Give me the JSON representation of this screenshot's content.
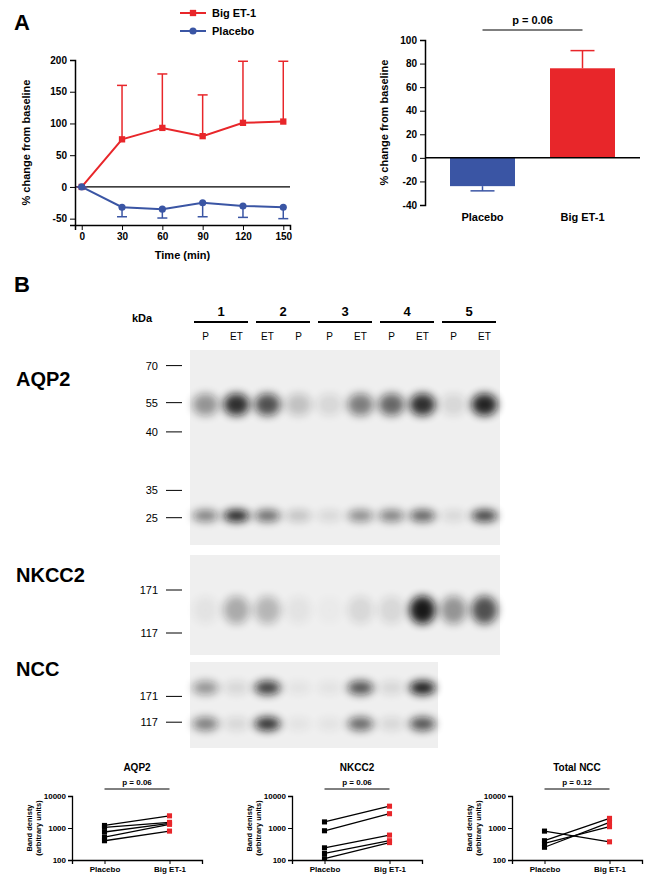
{
  "panel_labels": [
    "A",
    "B"
  ],
  "chart_data": [
    {
      "type": "line",
      "x": [
        0,
        30,
        60,
        90,
        120,
        150
      ],
      "xlim": [
        -5,
        155
      ],
      "xticks": [
        0,
        30,
        60,
        90,
        120,
        150
      ],
      "xlabel": "Time (min)",
      "ylabel": "% change from baseline",
      "ylim": [
        -60,
        200
      ],
      "yticks": [
        -50,
        0,
        50,
        100,
        150,
        200
      ],
      "legend": "top",
      "series": [
        {
          "name": "Big ET-1",
          "color": "#e8262a",
          "marker": "square",
          "values": [
            0,
            75,
            93,
            80,
            101,
            103
          ],
          "errors": [
            0,
            85,
            85,
            65,
            97,
            95
          ]
        },
        {
          "name": "Placebo",
          "color": "#3a55a4",
          "marker": "circle",
          "values": [
            0,
            -32,
            -35,
            -25,
            -30,
            -32
          ],
          "errors": [
            0,
            15,
            14,
            22,
            18,
            18
          ]
        }
      ]
    },
    {
      "type": "bar",
      "categories": [
        "Placebo",
        "Big ET-1"
      ],
      "values": [
        -24,
        76
      ],
      "errors": [
        4,
        15
      ],
      "colors": [
        "#3a55a4",
        "#e8262a"
      ],
      "ylabel": "% change from baseline",
      "ylim": [
        -40,
        100
      ],
      "yticks": [
        -40,
        -20,
        0,
        20,
        40,
        60,
        80,
        100
      ],
      "annotations": [
        "p = 0.06"
      ]
    },
    {
      "type": "line",
      "title": "AQP2",
      "categories": [
        "Placebo",
        "Big ET-1"
      ],
      "ylabel": [
        "Band denisty",
        "(arbitrary units)"
      ],
      "log": "y",
      "ylim": [
        100,
        10000
      ],
      "yticks": [
        100,
        1000,
        10000
      ],
      "colors": [
        "#000000",
        "#e8262a"
      ],
      "marker": "square",
      "annotations": [
        "p = 0.06"
      ],
      "series": [
        {
          "color": "#000000",
          "values": [
            1200,
            2400
          ]
        },
        {
          "color": "#000000",
          "values": [
            1050,
            1500
          ]
        },
        {
          "color": "#000000",
          "values": [
            750,
            1400
          ]
        },
        {
          "color": "#000000",
          "values": [
            520,
            1300
          ]
        },
        {
          "color": "#000000",
          "values": [
            400,
            800
          ]
        }
      ]
    },
    {
      "type": "line",
      "title": "NKCC2",
      "categories": [
        "Placebo",
        "Big ET-1"
      ],
      "ylabel": [
        "Band denisty",
        "(arbitrary units)"
      ],
      "log": "y",
      "ylim": [
        100,
        10000
      ],
      "yticks": [
        100,
        1000,
        10000
      ],
      "colors": [
        "#000000",
        "#e8262a"
      ],
      "marker": "square",
      "annotations": [
        "p = 0.06"
      ],
      "series": [
        {
          "color": "#000000",
          "values": [
            1550,
            4800
          ]
        },
        {
          "color": "#000000",
          "values": [
            820,
            2800
          ]
        },
        {
          "color": "#000000",
          "values": [
            240,
            600
          ]
        },
        {
          "color": "#000000",
          "values": [
            160,
            400
          ]
        },
        {
          "color": "#000000",
          "values": [
            110,
            350
          ]
        }
      ]
    },
    {
      "type": "line",
      "title": "Total NCC",
      "categories": [
        "Placebo",
        "Big ET-1"
      ],
      "ylabel": [
        "Band denisty",
        "(arbitrary units)"
      ],
      "log": "y",
      "ylim": [
        100,
        10000
      ],
      "yticks": [
        100,
        1000,
        10000
      ],
      "colors": [
        "#000000",
        "#e8262a"
      ],
      "marker": "square",
      "annotations": [
        "p = 0.12"
      ],
      "series": [
        {
          "color": "#000000",
          "values": [
            800,
            370
          ]
        },
        {
          "color": "#000000",
          "values": [
            400,
            2000
          ]
        },
        {
          "color": "#000000",
          "values": [
            330,
            1100
          ]
        },
        {
          "color": "#000000",
          "values": [
            250,
            1500
          ]
        }
      ]
    }
  ],
  "blots": {
    "marker_unit": "kDa",
    "lanes": [
      {
        "label": "1",
        "samples": [
          "P",
          "ET"
        ]
      },
      {
        "label": "2",
        "samples": [
          "ET",
          "P"
        ]
      },
      {
        "label": "3",
        "samples": [
          "P",
          "ET"
        ]
      },
      {
        "label": "4",
        "samples": [
          "P",
          "ET"
        ]
      },
      {
        "label": "5",
        "samples": [
          "P",
          "ET"
        ]
      }
    ],
    "panels": [
      {
        "name": "AQP2",
        "markers": [
          70,
          55,
          40,
          35,
          25
        ]
      },
      {
        "name": "NKCC2",
        "markers": [
          171,
          117
        ]
      },
      {
        "name": "NCC",
        "markers": [
          171,
          117
        ]
      }
    ]
  }
}
